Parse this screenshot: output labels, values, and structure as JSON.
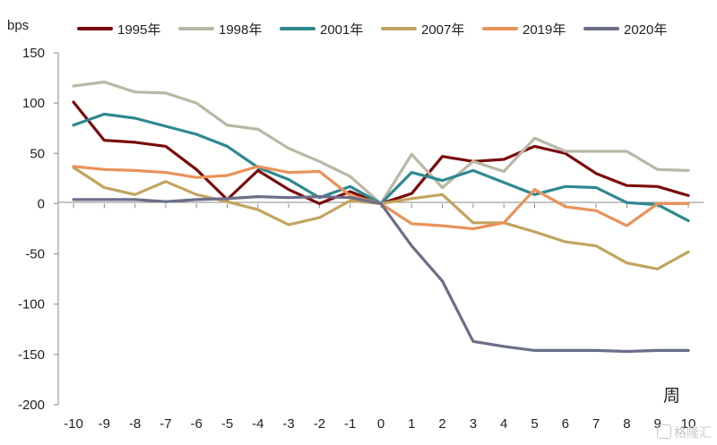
{
  "chart_data": {
    "type": "line",
    "y_unit": "bps",
    "x_unit": "周",
    "ylim": [
      -200,
      150
    ],
    "yticks": [
      150,
      100,
      50,
      0,
      -50,
      -100,
      -150,
      -200
    ],
    "x": [
      -10,
      -9,
      -8,
      -7,
      -6,
      -5,
      -4,
      -3,
      -2,
      -1,
      0,
      1,
      2,
      3,
      4,
      5,
      6,
      7,
      8,
      9,
      10
    ],
    "legend_position": "top",
    "grid": false,
    "series": [
      {
        "name": "1995年",
        "color": "#7a0c0c",
        "values": [
          101,
          63,
          61,
          57,
          34,
          4,
          33,
          14,
          0,
          12,
          0,
          10,
          47,
          42,
          44,
          57,
          50,
          30,
          18,
          17,
          8
        ]
      },
      {
        "name": "1998年",
        "color": "#b8b8a5",
        "values": [
          117,
          121,
          111,
          110,
          100,
          78,
          74,
          55,
          42,
          27,
          0,
          49,
          16,
          42,
          32,
          65,
          52,
          52,
          52,
          34,
          33
        ]
      },
      {
        "name": "2001年",
        "color": "#2f8890",
        "values": [
          78,
          89,
          85,
          77,
          69,
          57,
          36,
          24,
          6,
          17,
          0,
          31,
          23,
          33,
          21,
          9,
          17,
          16,
          1,
          -1,
          -17
        ]
      },
      {
        "name": "2007年",
        "color": "#c2a45e",
        "values": [
          36,
          16,
          9,
          22,
          9,
          2,
          -6,
          -21,
          -14,
          3,
          0,
          5,
          9,
          -19,
          -19,
          -28,
          -38,
          -42,
          -59,
          -65,
          -48
        ]
      },
      {
        "name": "2019年",
        "color": "#e8935a",
        "values": [
          37,
          34,
          33,
          31,
          26,
          28,
          37,
          31,
          32,
          8,
          0,
          -20,
          -22,
          -25,
          -19,
          14,
          -3,
          -7,
          -22,
          0,
          0
        ]
      },
      {
        "name": "2020年",
        "color": "#6b6e88",
        "values": [
          4,
          4,
          4,
          2,
          4,
          5,
          7,
          6,
          7,
          6,
          0,
          -42,
          -77,
          -137,
          -142,
          -146,
          -146,
          -146,
          -147,
          -146,
          -146
        ]
      }
    ]
  },
  "watermark": "格隆汇"
}
